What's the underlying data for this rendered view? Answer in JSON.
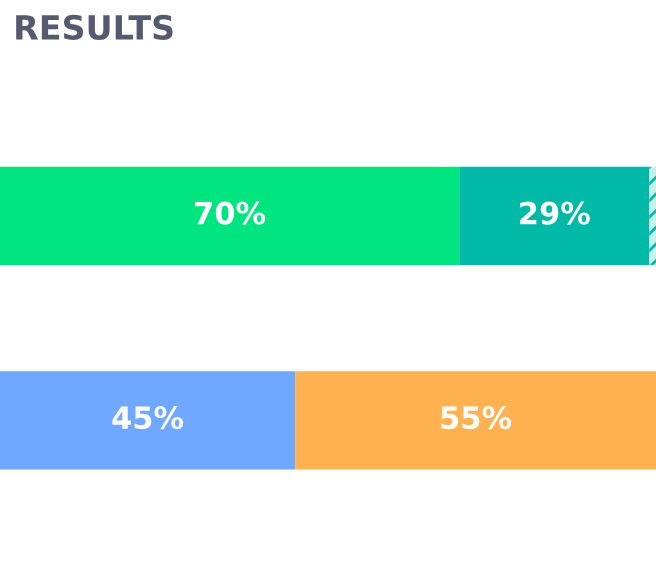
{
  "chart_data": {
    "type": "bar",
    "orientation": "horizontal",
    "stacked": true,
    "title": "RESULTS",
    "categories": [
      null,
      null
    ],
    "series": [
      {
        "colors": [
          "#00e57f",
          "#6fa8fe"
        ],
        "values": [
          70,
          45
        ],
        "value_labels": [
          "70%",
          "45%"
        ]
      },
      {
        "colors": [
          "#00b9a6",
          "#ffb24f"
        ],
        "values": [
          29,
          55
        ],
        "value_labels": [
          "29%",
          "55%"
        ]
      },
      {
        "color": "#00b9a6",
        "values": [
          1,
          null
        ],
        "value_labels": [
          null,
          null
        ]
      }
    ],
    "grid": false,
    "legend": false
  }
}
